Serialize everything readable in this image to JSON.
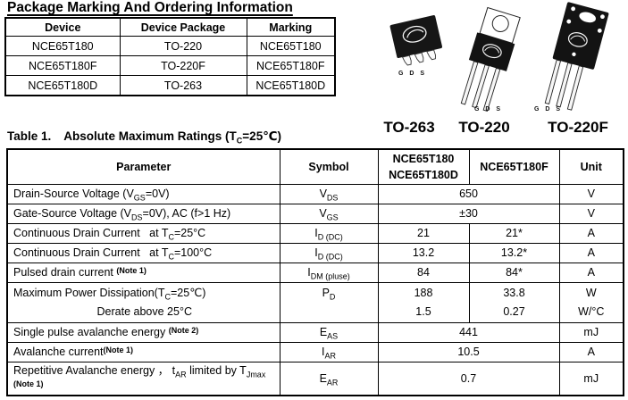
{
  "ordering": {
    "title": "Package Marking And Ordering Information",
    "headers": [
      "Device",
      "Device Package",
      "Marking"
    ],
    "rows": [
      [
        "NCE65T180",
        "TO-220",
        "NCE65T180"
      ],
      [
        "NCE65T180F",
        "TO-220F",
        "NCE65T180F"
      ],
      [
        "NCE65T180D",
        "TO-263",
        "NCE65T180D"
      ]
    ]
  },
  "packages": [
    {
      "label": "TO-263",
      "pins": "G D S"
    },
    {
      "label": "TO-220",
      "pins": "G D S"
    },
    {
      "label": "TO-220F",
      "pins": "G D S"
    }
  ],
  "ratings": {
    "table_label": "Table 1.",
    "title": "Absolute Maximum Ratings (T~C~=25℃)",
    "headers": [
      "Parameter",
      "Symbol",
      "NCE65T180\nNCE65T180D",
      "NCE65T180F",
      "Unit"
    ],
    "rows": [
      {
        "param": "Drain-Source Voltage (V~GS~=0V)",
        "symbol": "V~DS~",
        "merged": true,
        "values": [
          "650"
        ],
        "unit": "V"
      },
      {
        "param": "Gate-Source Voltage (V~DS~=0V), AC (f>1 Hz)",
        "symbol": "V~GS~",
        "merged": true,
        "values": [
          "±30"
        ],
        "unit": "V"
      },
      {
        "param": "Continuous Drain Current   at T~C~=25°C",
        "symbol": "I~D (DC)~",
        "merged": false,
        "values": [
          "21",
          "21*"
        ],
        "unit": "A"
      },
      {
        "param": "Continuous Drain Current   at T~C~=100°C",
        "symbol": "I~D (DC)~",
        "merged": false,
        "values": [
          "13.2",
          "13.2*"
        ],
        "unit": "A"
      },
      {
        "param": "Pulsed drain current ^(Note 1)^",
        "symbol": "I~DM (pluse)~",
        "merged": false,
        "values": [
          "84",
          "84*"
        ],
        "unit": "A"
      },
      {
        "param_lines": [
          {
            "text": "Maximum Power Dissipation(T~C~=25℃)"
          },
          {
            "text": "Derate above 25°C",
            "align": "center"
          }
        ],
        "symbol": "P~D~",
        "merged": false,
        "values_lines": [
          [
            "188",
            "1.5"
          ],
          [
            "33.8",
            "0.27"
          ]
        ],
        "unit_lines": [
          "W",
          "W/°C"
        ]
      },
      {
        "param": "Single pulse avalanche energy ^(Note 2)^",
        "symbol": "E~AS~",
        "merged": true,
        "values": [
          "441"
        ],
        "unit": "mJ"
      },
      {
        "param": "Avalanche current^(Note 1)^",
        "symbol": "I~AR~",
        "merged": true,
        "values": [
          "10.5"
        ],
        "unit": "A"
      },
      {
        "param": "Repetitive Avalanche energy ， t~AR~ limited by T~Jmax~\n^(Note 1)^",
        "symbol": "E~AR~",
        "merged": true,
        "values": [
          "0.7"
        ],
        "unit": "mJ"
      }
    ]
  }
}
